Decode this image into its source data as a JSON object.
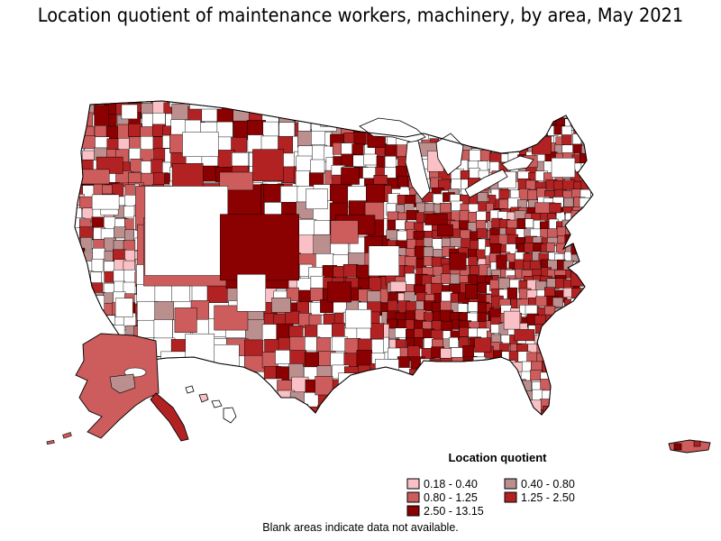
{
  "title": "Location quotient of maintenance workers, machinery, by area, May 2021",
  "legend": {
    "title": "Location quotient",
    "items": [
      {
        "label": "0.18 - 0.40",
        "color": "#f9c0c5"
      },
      {
        "label": "0.40 - 0.80",
        "color": "#bc8f8f"
      },
      {
        "label": "0.80 - 1.25",
        "color": "#cd5c5c"
      },
      {
        "label": "1.25 - 2.50",
        "color": "#b22222"
      },
      {
        "label": "2.50 - 13.15",
        "color": "#8b0000"
      }
    ]
  },
  "note": "Blank areas indicate data not available.",
  "map": {
    "no_data_color": "#ffffff",
    "border_color": "#000000"
  }
}
